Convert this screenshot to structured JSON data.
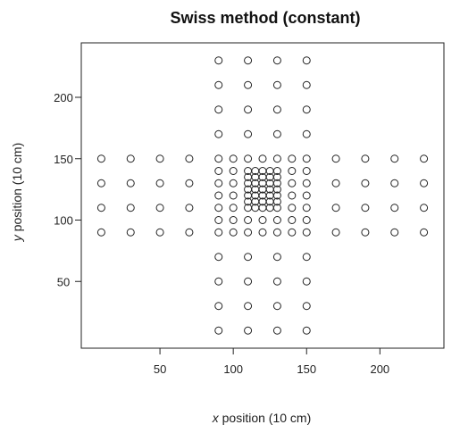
{
  "chart_data": {
    "type": "scatter",
    "title": "Swiss method (constant)",
    "xlabel_var": "x",
    "xlabel_rest": " position (10 cm)",
    "ylabel_var": "y",
    "ylabel_rest": " position (10 cm)",
    "xlim": [
      0,
      240
    ],
    "ylim": [
      0,
      240
    ],
    "xticks": [
      50,
      100,
      150,
      200
    ],
    "yticks": [
      50,
      100,
      150,
      200
    ],
    "grid": false,
    "legend": "none",
    "marker": "open-circle",
    "points": [
      [
        90,
        10
      ],
      [
        110,
        10
      ],
      [
        130,
        10
      ],
      [
        150,
        10
      ],
      [
        90,
        30
      ],
      [
        110,
        30
      ],
      [
        130,
        30
      ],
      [
        150,
        30
      ],
      [
        90,
        50
      ],
      [
        110,
        50
      ],
      [
        130,
        50
      ],
      [
        150,
        50
      ],
      [
        90,
        70
      ],
      [
        110,
        70
      ],
      [
        130,
        70
      ],
      [
        150,
        70
      ],
      [
        90,
        170
      ],
      [
        110,
        170
      ],
      [
        130,
        170
      ],
      [
        150,
        170
      ],
      [
        90,
        190
      ],
      [
        110,
        190
      ],
      [
        130,
        190
      ],
      [
        150,
        190
      ],
      [
        90,
        210
      ],
      [
        110,
        210
      ],
      [
        130,
        210
      ],
      [
        150,
        210
      ],
      [
        90,
        230
      ],
      [
        110,
        230
      ],
      [
        130,
        230
      ],
      [
        150,
        230
      ],
      [
        10,
        90
      ],
      [
        30,
        90
      ],
      [
        50,
        90
      ],
      [
        70,
        90
      ],
      [
        10,
        110
      ],
      [
        30,
        110
      ],
      [
        50,
        110
      ],
      [
        70,
        110
      ],
      [
        10,
        130
      ],
      [
        30,
        130
      ],
      [
        50,
        130
      ],
      [
        70,
        130
      ],
      [
        10,
        150
      ],
      [
        30,
        150
      ],
      [
        50,
        150
      ],
      [
        70,
        150
      ],
      [
        170,
        90
      ],
      [
        190,
        90
      ],
      [
        210,
        90
      ],
      [
        230,
        90
      ],
      [
        170,
        110
      ],
      [
        190,
        110
      ],
      [
        210,
        110
      ],
      [
        230,
        110
      ],
      [
        170,
        130
      ],
      [
        190,
        130
      ],
      [
        210,
        130
      ],
      [
        230,
        130
      ],
      [
        170,
        150
      ],
      [
        190,
        150
      ],
      [
        210,
        150
      ],
      [
        230,
        150
      ],
      [
        90,
        90
      ],
      [
        100,
        90
      ],
      [
        110,
        90
      ],
      [
        120,
        90
      ],
      [
        130,
        90
      ],
      [
        140,
        90
      ],
      [
        150,
        90
      ],
      [
        90,
        100
      ],
      [
        100,
        100
      ],
      [
        110,
        100
      ],
      [
        120,
        100
      ],
      [
        130,
        100
      ],
      [
        140,
        100
      ],
      [
        150,
        100
      ],
      [
        90,
        110
      ],
      [
        100,
        110
      ],
      [
        140,
        110
      ],
      [
        150,
        110
      ],
      [
        90,
        120
      ],
      [
        100,
        120
      ],
      [
        140,
        120
      ],
      [
        150,
        120
      ],
      [
        90,
        130
      ],
      [
        100,
        130
      ],
      [
        140,
        130
      ],
      [
        150,
        130
      ],
      [
        90,
        140
      ],
      [
        100,
        140
      ],
      [
        140,
        140
      ],
      [
        150,
        140
      ],
      [
        90,
        150
      ],
      [
        100,
        150
      ],
      [
        110,
        150
      ],
      [
        120,
        150
      ],
      [
        130,
        150
      ],
      [
        140,
        150
      ],
      [
        150,
        150
      ],
      [
        110,
        110
      ],
      [
        115,
        110
      ],
      [
        120,
        110
      ],
      [
        125,
        110
      ],
      [
        130,
        110
      ],
      [
        110,
        115
      ],
      [
        115,
        115
      ],
      [
        120,
        115
      ],
      [
        125,
        115
      ],
      [
        130,
        115
      ],
      [
        110,
        120
      ],
      [
        115,
        120
      ],
      [
        120,
        120
      ],
      [
        125,
        120
      ],
      [
        130,
        120
      ],
      [
        110,
        125
      ],
      [
        115,
        125
      ],
      [
        120,
        125
      ],
      [
        125,
        125
      ],
      [
        130,
        125
      ],
      [
        110,
        130
      ],
      [
        115,
        130
      ],
      [
        120,
        130
      ],
      [
        125,
        130
      ],
      [
        130,
        130
      ],
      [
        110,
        135
      ],
      [
        115,
        135
      ],
      [
        120,
        135
      ],
      [
        125,
        135
      ],
      [
        130,
        135
      ],
      [
        110,
        140
      ],
      [
        115,
        140
      ],
      [
        120,
        140
      ],
      [
        125,
        140
      ],
      [
        130,
        140
      ]
    ]
  }
}
